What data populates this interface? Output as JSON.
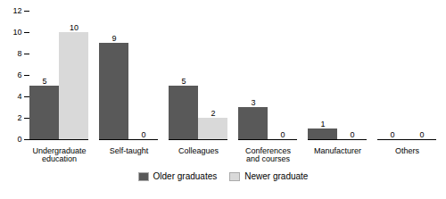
{
  "chart_data": {
    "type": "bar",
    "categories": [
      "Undergraduate\neducation",
      "Self-taught",
      "Colleagues",
      "Conferences\nand courses",
      "Manufacturer",
      "Others"
    ],
    "series": [
      {
        "name": "Older graduates",
        "color": "#595959",
        "values": [
          5,
          9,
          5,
          3,
          1,
          0
        ]
      },
      {
        "name": "Newer graduate",
        "color": "#d9d9d9",
        "values": [
          10,
          0,
          2,
          0,
          0,
          0
        ]
      }
    ],
    "ylim": [
      0,
      12
    ],
    "yticks": [
      0,
      2,
      4,
      6,
      8,
      10,
      12
    ],
    "data_labels": true,
    "grid": false,
    "legend": "bottom"
  }
}
